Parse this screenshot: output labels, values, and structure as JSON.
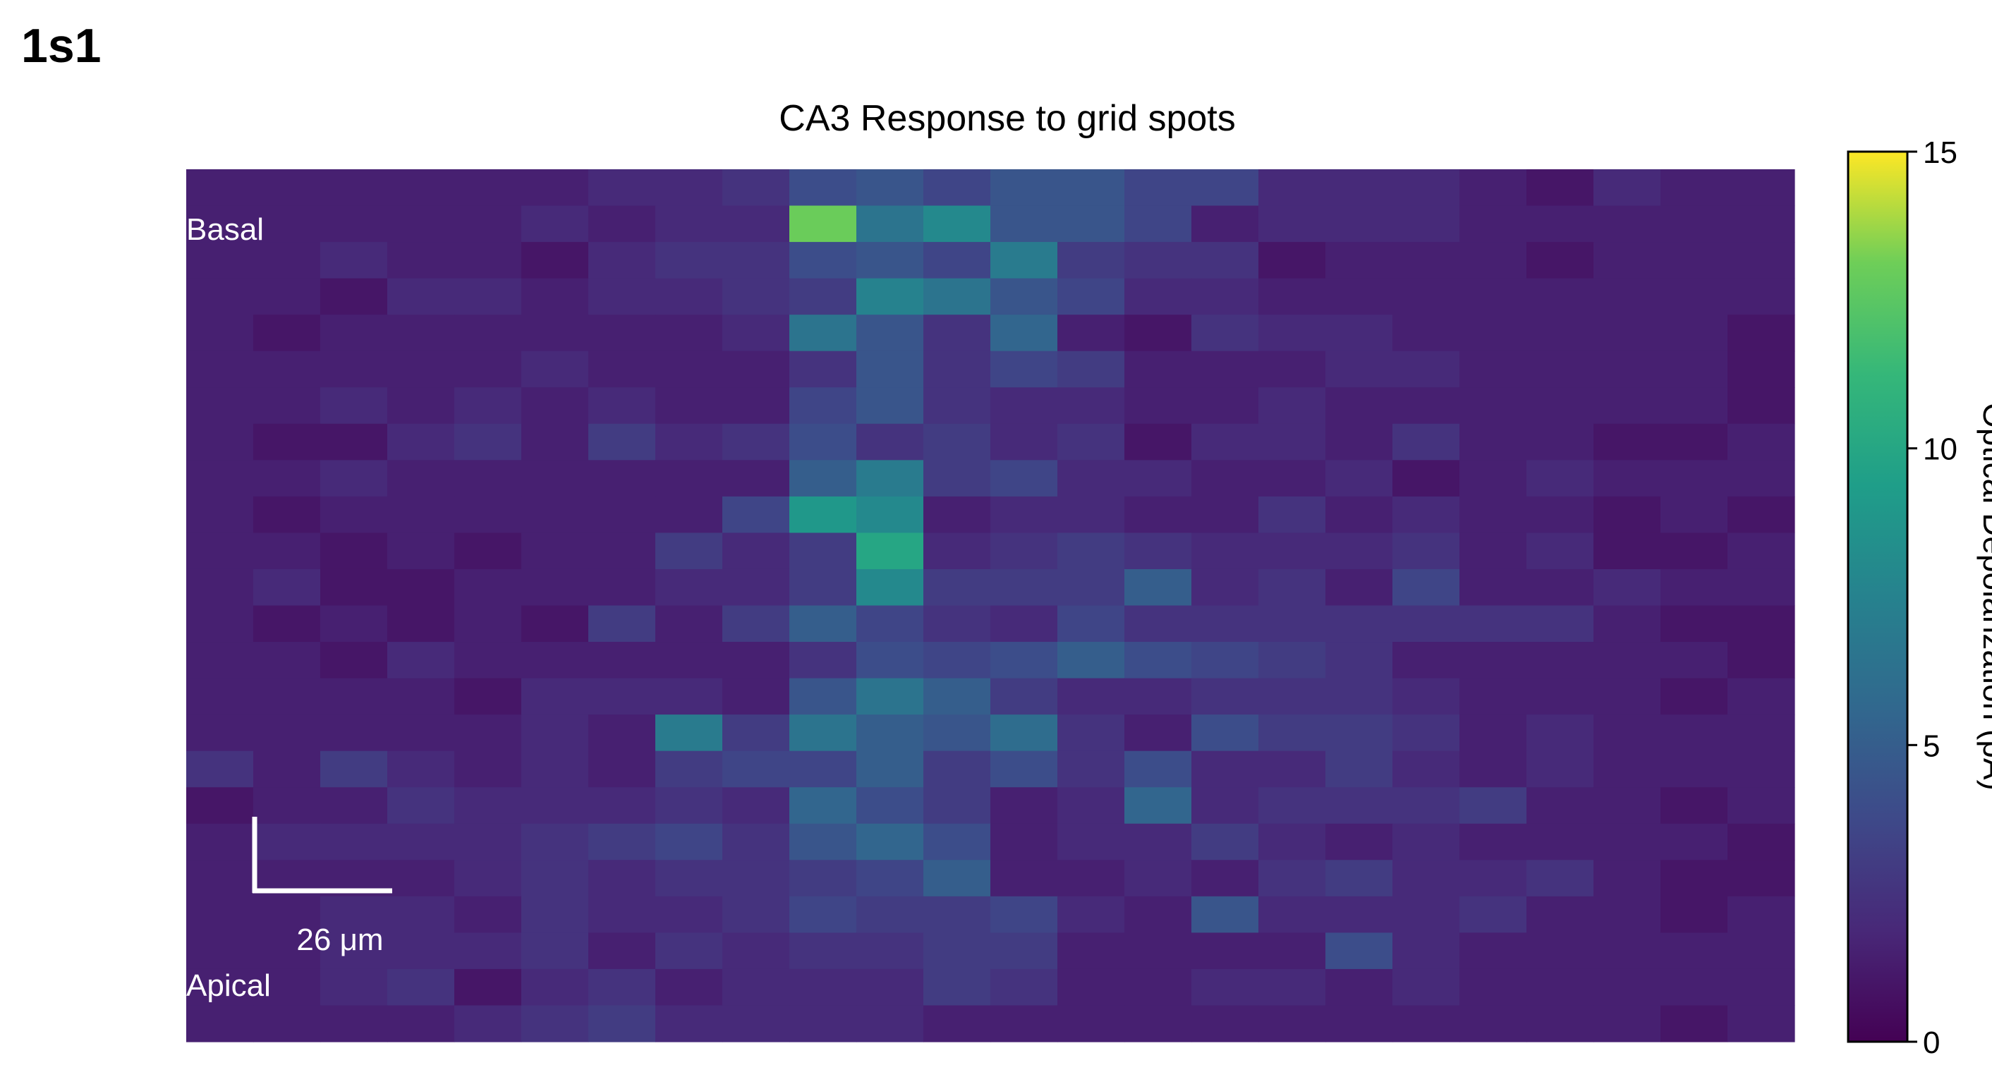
{
  "panel_label": "1s1",
  "chart_data": {
    "type": "heatmap",
    "title": "CA3 Response to grid spots",
    "colormap": "viridis",
    "colorbar": {
      "label": "Optical Depolarization (pA)",
      "range": [
        0,
        15
      ],
      "ticks": [
        0,
        5,
        10,
        15
      ]
    },
    "annotations": {
      "top": "Basal",
      "bottom": "Apical",
      "scale_bar": "26 μm"
    },
    "cols": 24,
    "rows": 24,
    "values": [
      [
        1.5,
        1.5,
        1.5,
        1.5,
        1.5,
        1.5,
        2.0,
        2.0,
        2.5,
        4.0,
        4.5,
        3.5,
        4.5,
        4.5,
        3.5,
        3.5,
        2.0,
        2.0,
        2.0,
        1.5,
        1.0,
        2.0,
        1.5,
        1.5
      ],
      [
        1.5,
        1.5,
        1.5,
        1.5,
        1.5,
        2.0,
        1.5,
        2.0,
        2.0,
        13.0,
        6.5,
        8.0,
        4.5,
        4.5,
        3.5,
        1.5,
        2.0,
        2.0,
        2.0,
        1.5,
        1.5,
        1.5,
        1.5,
        1.5
      ],
      [
        1.5,
        1.5,
        2.0,
        1.5,
        1.5,
        1.0,
        2.0,
        2.5,
        2.5,
        4.0,
        4.5,
        3.5,
        7.0,
        3.0,
        2.5,
        2.5,
        1.0,
        1.5,
        1.5,
        1.5,
        1.0,
        1.5,
        1.5,
        1.5
      ],
      [
        1.5,
        1.5,
        1.0,
        2.0,
        2.0,
        1.5,
        2.0,
        2.0,
        2.5,
        3.0,
        7.5,
        6.5,
        4.5,
        3.5,
        2.0,
        2.0,
        1.5,
        1.5,
        1.5,
        1.5,
        1.5,
        1.5,
        1.5,
        1.5
      ],
      [
        1.5,
        1.0,
        1.5,
        1.5,
        1.5,
        1.5,
        1.5,
        1.5,
        2.0,
        6.5,
        4.5,
        2.5,
        5.5,
        1.5,
        1.0,
        2.5,
        2.0,
        2.0,
        1.5,
        1.5,
        1.5,
        1.5,
        1.5,
        1.0
      ],
      [
        1.5,
        1.5,
        1.5,
        1.5,
        1.5,
        2.0,
        1.5,
        1.5,
        1.5,
        2.5,
        4.5,
        2.5,
        3.5,
        3.0,
        1.5,
        1.5,
        1.5,
        2.0,
        2.0,
        1.5,
        1.5,
        1.5,
        1.5,
        1.0
      ],
      [
        1.5,
        1.5,
        2.0,
        1.5,
        2.0,
        1.5,
        2.0,
        1.5,
        1.5,
        3.5,
        4.5,
        2.5,
        2.0,
        2.0,
        1.5,
        1.5,
        2.0,
        1.5,
        1.5,
        1.5,
        1.5,
        1.5,
        1.5,
        1.0
      ],
      [
        1.5,
        1.0,
        1.0,
        2.0,
        2.5,
        1.5,
        3.0,
        2.0,
        2.5,
        4.0,
        2.5,
        3.0,
        2.0,
        2.5,
        1.0,
        2.0,
        2.0,
        1.5,
        2.5,
        1.5,
        1.5,
        1.0,
        1.0,
        1.5
      ],
      [
        1.5,
        1.5,
        2.0,
        1.5,
        1.5,
        1.5,
        1.5,
        1.5,
        1.5,
        5.0,
        7.0,
        3.0,
        3.5,
        2.0,
        2.0,
        1.5,
        1.5,
        2.0,
        1.0,
        1.5,
        2.0,
        1.5,
        1.5,
        1.5
      ],
      [
        1.5,
        1.0,
        1.5,
        1.5,
        1.5,
        1.5,
        1.5,
        1.5,
        3.5,
        9.0,
        8.0,
        1.5,
        2.0,
        2.0,
        1.5,
        1.5,
        2.5,
        1.5,
        2.0,
        1.5,
        1.5,
        1.0,
        1.5,
        1.0
      ],
      [
        1.5,
        1.5,
        1.0,
        1.5,
        1.0,
        1.5,
        1.5,
        3.0,
        2.0,
        3.0,
        10.0,
        2.0,
        2.5,
        3.0,
        2.5,
        2.0,
        2.0,
        2.0,
        2.5,
        1.5,
        2.0,
        1.0,
        1.0,
        1.5
      ],
      [
        1.5,
        2.0,
        1.0,
        1.0,
        1.5,
        1.5,
        1.5,
        2.0,
        2.0,
        3.0,
        8.0,
        3.0,
        3.0,
        3.0,
        5.0,
        2.0,
        2.5,
        1.5,
        3.5,
        1.5,
        1.5,
        2.0,
        1.5,
        1.5
      ],
      [
        1.5,
        1.0,
        1.5,
        1.0,
        1.5,
        1.0,
        3.0,
        1.5,
        3.0,
        5.0,
        3.5,
        2.5,
        2.0,
        3.5,
        2.5,
        2.5,
        2.5,
        2.5,
        2.5,
        2.5,
        2.5,
        1.5,
        1.0,
        1.0
      ],
      [
        1.5,
        1.5,
        1.0,
        2.0,
        1.5,
        1.5,
        1.5,
        1.5,
        1.5,
        2.5,
        4.0,
        3.5,
        4.0,
        5.0,
        4.0,
        3.5,
        3.0,
        2.5,
        1.5,
        1.5,
        1.5,
        1.5,
        1.5,
        1.0
      ],
      [
        1.5,
        1.5,
        1.5,
        1.5,
        1.0,
        2.0,
        2.0,
        2.0,
        1.5,
        4.5,
        6.5,
        5.0,
        3.0,
        2.0,
        2.0,
        2.5,
        2.5,
        2.5,
        2.0,
        1.5,
        1.5,
        1.5,
        1.0,
        1.5
      ],
      [
        1.5,
        1.5,
        1.5,
        1.5,
        1.5,
        2.0,
        1.5,
        7.0,
        3.0,
        6.5,
        5.0,
        4.5,
        6.0,
        2.5,
        1.5,
        4.0,
        3.0,
        3.0,
        2.5,
        1.5,
        2.0,
        1.5,
        1.5,
        1.5
      ],
      [
        2.5,
        1.5,
        3.0,
        2.0,
        1.5,
        2.0,
        1.5,
        3.0,
        3.5,
        3.5,
        5.0,
        3.0,
        4.0,
        2.5,
        4.0,
        2.0,
        2.0,
        3.0,
        2.0,
        1.5,
        2.0,
        1.5,
        1.5,
        1.5
      ],
      [
        1.0,
        1.5,
        1.5,
        2.5,
        2.0,
        2.0,
        2.0,
        2.5,
        2.0,
        5.5,
        4.0,
        3.0,
        1.5,
        2.0,
        5.5,
        2.0,
        2.5,
        2.5,
        2.5,
        3.0,
        1.5,
        1.5,
        1.0,
        1.5
      ],
      [
        1.5,
        2.0,
        2.0,
        2.0,
        2.0,
        2.5,
        3.0,
        3.5,
        2.5,
        4.5,
        5.5,
        4.0,
        1.5,
        2.0,
        2.0,
        3.0,
        2.0,
        1.5,
        2.0,
        1.5,
        1.5,
        1.5,
        1.5,
        1.0
      ],
      [
        1.5,
        1.5,
        1.5,
        1.5,
        2.0,
        2.5,
        2.0,
        2.5,
        2.5,
        3.0,
        3.5,
        5.0,
        1.5,
        1.5,
        2.0,
        1.5,
        2.5,
        3.0,
        2.0,
        2.0,
        2.5,
        1.5,
        1.0,
        1.0
      ],
      [
        1.5,
        1.5,
        2.0,
        2.0,
        1.5,
        2.5,
        2.0,
        2.0,
        2.5,
        3.5,
        3.0,
        3.0,
        3.5,
        2.0,
        1.5,
        4.5,
        2.0,
        2.0,
        2.0,
        2.5,
        1.5,
        1.5,
        1.0,
        1.5
      ],
      [
        1.5,
        1.5,
        2.0,
        2.0,
        2.0,
        2.5,
        1.5,
        2.5,
        2.0,
        2.5,
        2.5,
        3.0,
        3.0,
        1.5,
        1.5,
        1.5,
        1.5,
        4.0,
        2.0,
        1.5,
        1.5,
        1.5,
        1.5,
        1.5
      ],
      [
        1.5,
        1.5,
        2.0,
        2.5,
        1.0,
        2.0,
        2.5,
        1.5,
        2.0,
        2.0,
        2.0,
        3.0,
        2.5,
        1.5,
        1.5,
        2.0,
        2.0,
        1.5,
        2.0,
        1.5,
        1.5,
        1.5,
        1.5,
        1.5
      ],
      [
        1.5,
        1.5,
        1.5,
        1.5,
        2.0,
        2.5,
        3.0,
        2.0,
        2.0,
        2.0,
        2.0,
        1.5,
        1.5,
        1.5,
        1.5,
        1.5,
        1.5,
        1.5,
        1.5,
        1.5,
        1.5,
        1.5,
        1.0,
        1.5
      ]
    ]
  }
}
